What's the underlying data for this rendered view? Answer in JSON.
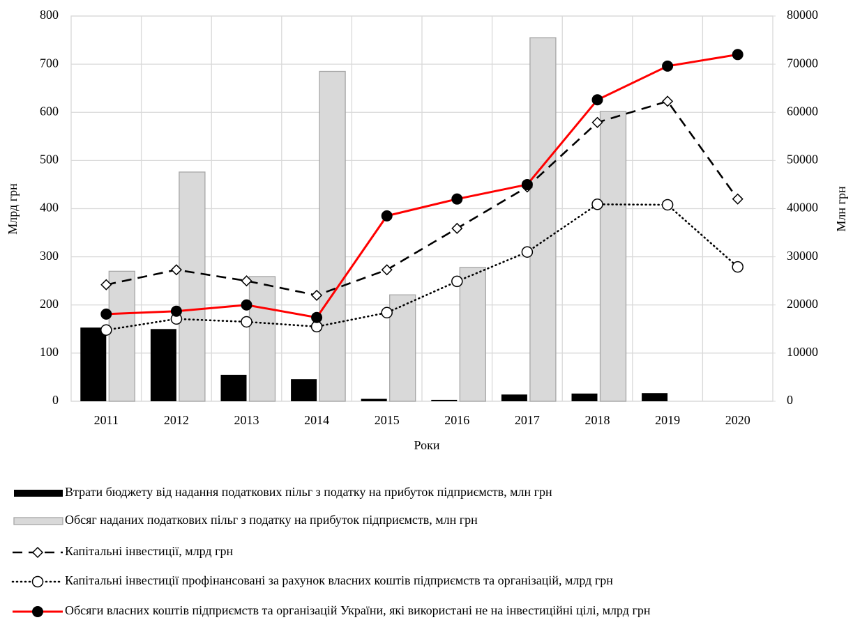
{
  "chart_data": {
    "type": "bar",
    "categories": [
      "2011",
      "2012",
      "2013",
      "2014",
      "2015",
      "2016",
      "2017",
      "2018",
      "2019",
      "2020"
    ],
    "xlabel": "Роки",
    "ylabel": "Млрд грн",
    "y2label": "Млн грн",
    "ylim": [
      0,
      800
    ],
    "yticks": [
      0,
      100,
      200,
      300,
      400,
      500,
      600,
      700,
      800
    ],
    "y2lim": [
      0,
      80000
    ],
    "y2ticks": [
      0,
      10000,
      20000,
      30000,
      40000,
      50000,
      60000,
      70000,
      80000
    ],
    "grid": true,
    "legend": "bottom",
    "series": [
      {
        "name": "Втрати бюджету від надання податкових пільг з податку на прибуток підприємств, млн грн",
        "type": "bar",
        "axis": "y2",
        "color": "#000000",
        "values": [
          15300,
          15000,
          5500,
          4600,
          500,
          300,
          1400,
          1600,
          1700,
          null
        ]
      },
      {
        "name": "Обсяг наданих податкових пільг з податку на прибуток підприємств, млн грн",
        "type": "bar",
        "axis": "y2",
        "color": "#d9d9d9",
        "values": [
          27000,
          47600,
          25900,
          68500,
          22100,
          27800,
          75500,
          60200,
          null,
          null
        ]
      },
      {
        "name": "Капітальні інвестиції, млрд грн",
        "type": "line",
        "color": "#000000",
        "dash": "dashed",
        "marker": "diamond",
        "values": [
          242,
          273,
          250,
          220,
          273,
          359,
          445,
          579,
          623,
          420
        ]
      },
      {
        "name": "Капітальні інвестиції профінансовані за рахунок власних коштів підприємств та організацій, млрд грн",
        "type": "line",
        "color": "#000000",
        "dash": "dotted",
        "marker": "circle-open",
        "values": [
          148,
          171,
          165,
          155,
          184,
          249,
          310,
          409,
          408,
          279
        ]
      },
      {
        "name": "Обсяги власних коштів підприємств та організацій України, які використані не на інвестиційні цілі, млрд грн",
        "type": "line",
        "color": "#ff0000",
        "dash": "solid",
        "marker": "circle-filled",
        "values": [
          181,
          187,
          200,
          174,
          385,
          420,
          450,
          626,
          696,
          720
        ]
      }
    ]
  }
}
